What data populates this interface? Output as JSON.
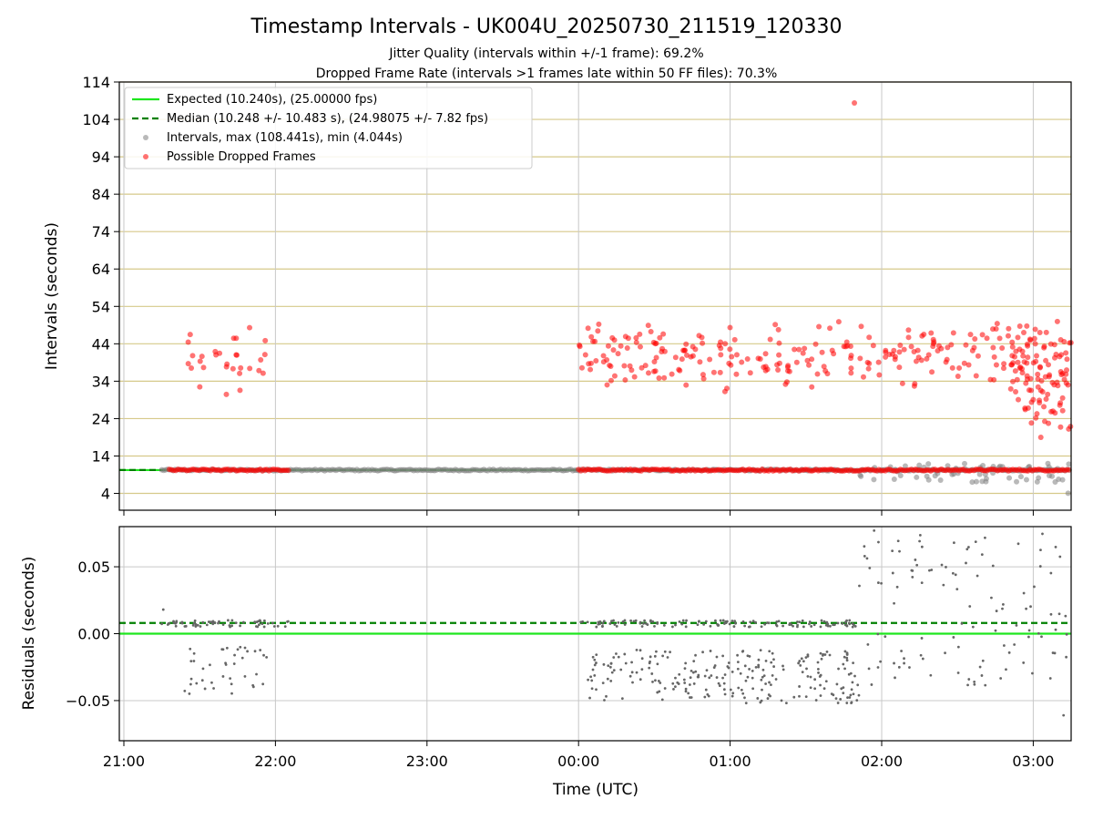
{
  "chart_data": [
    {
      "type": "scatter",
      "title": "Timestamp Intervals - UK004U_20250730_211519_120330",
      "subtitle": [
        "Jitter Quality (intervals within +/-1 frame): 69.2%",
        "Dropped Frame Rate (intervals >1 frames late within 50 FF files): 70.3%"
      ],
      "xlabel": "",
      "ylabel": "Intervals (seconds)",
      "x_unit": "hours since 21:00 UTC",
      "xlim": [
        -0.03,
        6.25
      ],
      "ylim": [
        -0.5,
        114
      ],
      "yticks": [
        4,
        14,
        24,
        34,
        44,
        54,
        64,
        74,
        84,
        94,
        104,
        114
      ],
      "grid": true,
      "legend_position": "top-left",
      "legend": [
        "Expected (10.240s), (25.00000 fps)",
        "Median (10.248 +/- 10.483 s), (24.98075 +/- 7.82 fps)",
        "Intervals, max (108.441s), min (4.044s)",
        "Possible Dropped Frames"
      ],
      "expected_interval": 10.24,
      "median_interval": 10.248,
      "interval_max": 108.441,
      "interval_min": 4.044,
      "series": [
        {
          "name": "Possible Dropped Frames",
          "clusters": [
            {
              "x_range": [
                0.4,
                0.95
              ],
              "y_range": [
                29,
                49
              ],
              "count": 30
            },
            {
              "x_range": [
                3.0,
                5.85
              ],
              "y_range": [
                31,
                51
              ],
              "count": 230
            },
            {
              "x_range": [
                5.85,
                6.25
              ],
              "y_range": [
                19,
                52
              ],
              "count": 110
            }
          ],
          "points": [
            [
              4.82,
              108.4
            ],
            [
              6.05,
              19.0
            ],
            [
              6.13,
              26.0
            ],
            [
              6.22,
              37.0
            ]
          ],
          "baseline_band": {
            "y": 10.24,
            "segments": [
              [
                0.3,
                1.1
              ],
              [
                3.0,
                6.25
              ]
            ]
          }
        },
        {
          "name": "Intervals, max (108.441s), min (4.044s)",
          "baseline_band": {
            "y": 10.24,
            "segments": [
              [
                0.25,
                6.25
              ]
            ]
          },
          "low_scatter": {
            "x_range": [
              4.85,
              6.25
            ],
            "y_range": [
              7.0,
              12.0
            ],
            "count": 60
          },
          "points": [
            [
              6.23,
              4.04
            ]
          ]
        }
      ]
    },
    {
      "type": "scatter",
      "xlabel": "Time (UTC)",
      "ylabel": "Residuals (seconds)",
      "xlim": [
        -0.03,
        6.25
      ],
      "ylim": [
        -0.08,
        0.08
      ],
      "yticks": [
        -0.05,
        0.0,
        0.05
      ],
      "ytick_labels": [
        "−0.05",
        "0.00",
        "0.05"
      ],
      "xticks": [
        0,
        1,
        2,
        3,
        4,
        5,
        6
      ],
      "xtick_labels": [
        "21:00",
        "22:00",
        "23:00",
        "00:00",
        "01:00",
        "02:00",
        "03:00"
      ],
      "grid": true,
      "expected_residual": 0.0,
      "median_residual": 0.008,
      "series": [
        {
          "name": "residuals",
          "clusters": [
            {
              "x_range": [
                0.25,
                1.1
              ],
              "y_range": [
                0.005,
                0.01
              ],
              "count": 60
            },
            {
              "x_range": [
                0.4,
                0.95
              ],
              "y_range": [
                -0.045,
                -0.01
              ],
              "count": 40
            },
            {
              "x_range": [
                3.0,
                4.85
              ],
              "y_range": [
                0.005,
                0.01
              ],
              "count": 120
            },
            {
              "x_range": [
                3.05,
                4.85
              ],
              "y_range": [
                -0.052,
                -0.012
              ],
              "count": 240
            },
            {
              "x_range": [
                4.85,
                6.25
              ],
              "y_range": [
                -0.04,
                0.075
              ],
              "count": 110
            }
          ],
          "points": [
            [
              0.26,
              0.018
            ],
            [
              4.95,
              0.077
            ],
            [
              6.2,
              -0.061
            ]
          ]
        }
      ]
    }
  ]
}
